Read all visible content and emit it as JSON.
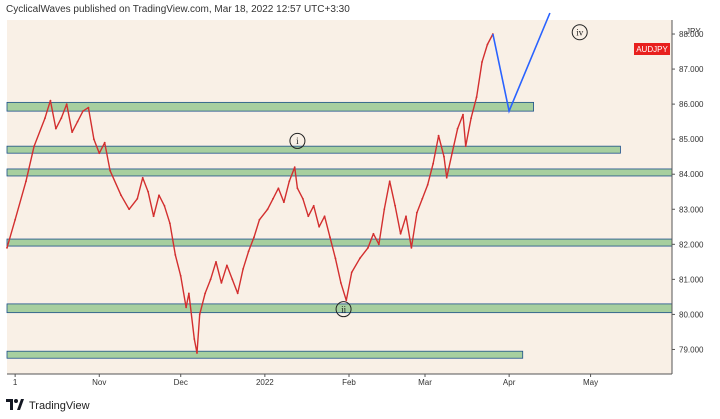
{
  "header": {
    "attribution": "CyclicalWaves published on TradingView.com, Mar 18, 2022 12:57 UTC+3:30"
  },
  "footer": {
    "brand": "TradingView",
    "logo_icon": "tradingview-logo-icon"
  },
  "colors": {
    "background": "#f9f0e6",
    "candle": "#d32f2f",
    "zone_fill": "#a7cf9f",
    "zone_border": "#1b4f8a",
    "projection": "#2962ff",
    "axis_text": "#333333",
    "symbol_badge": "#e8201e"
  },
  "chart_data": {
    "type": "line",
    "symbol": "AUDJPY",
    "unit": "JPY",
    "ylim": [
      78.3,
      88.4
    ],
    "y_ticks": [
      79.0,
      80.0,
      81.0,
      82.0,
      83.0,
      84.0,
      85.0,
      86.0,
      87.0,
      88.0
    ],
    "y_tick_labels": [
      "79.000",
      "80.000",
      "81.000",
      "82.000",
      "83.000",
      "84.000",
      "85.000",
      "86.000",
      "87.000",
      "88.000"
    ],
    "x_range": [
      "2021-09-28",
      "2022-05-31"
    ],
    "x_ticks": [
      {
        "date": "2021-10-01",
        "label": "1"
      },
      {
        "date": "2021-11-01",
        "label": "Nov"
      },
      {
        "date": "2021-12-01",
        "label": "Dec"
      },
      {
        "date": "2022-01-01",
        "label": "2022"
      },
      {
        "date": "2022-02-01",
        "label": "Feb"
      },
      {
        "date": "2022-03-01",
        "label": "Mar"
      },
      {
        "date": "2022-04-01",
        "label": "Apr"
      },
      {
        "date": "2022-05-01",
        "label": "May"
      }
    ],
    "series": [
      {
        "points": [
          [
            "2021-09-28",
            81.9
          ],
          [
            "2021-10-01",
            82.7
          ],
          [
            "2021-10-05",
            83.8
          ],
          [
            "2021-10-08",
            84.8
          ],
          [
            "2021-10-12",
            85.6
          ],
          [
            "2021-10-14",
            86.1
          ],
          [
            "2021-10-16",
            85.3
          ],
          [
            "2021-10-18",
            85.6
          ],
          [
            "2021-10-20",
            86.0
          ],
          [
            "2021-10-22",
            85.2
          ],
          [
            "2021-10-24",
            85.5
          ],
          [
            "2021-10-26",
            85.8
          ],
          [
            "2021-10-28",
            85.9
          ],
          [
            "2021-10-30",
            85.0
          ],
          [
            "2021-11-01",
            84.6
          ],
          [
            "2021-11-03",
            84.9
          ],
          [
            "2021-11-05",
            84.1
          ],
          [
            "2021-11-09",
            83.4
          ],
          [
            "2021-11-12",
            83.0
          ],
          [
            "2021-11-15",
            83.3
          ],
          [
            "2021-11-17",
            83.9
          ],
          [
            "2021-11-19",
            83.5
          ],
          [
            "2021-11-21",
            82.8
          ],
          [
            "2021-11-23",
            83.4
          ],
          [
            "2021-11-25",
            83.1
          ],
          [
            "2021-11-27",
            82.6
          ],
          [
            "2021-11-29",
            81.7
          ],
          [
            "2021-12-01",
            81.1
          ],
          [
            "2021-12-03",
            80.2
          ],
          [
            "2021-12-04",
            80.6
          ],
          [
            "2021-12-06",
            79.3
          ],
          [
            "2021-12-07",
            78.9
          ],
          [
            "2021-12-08",
            80.0
          ],
          [
            "2021-12-10",
            80.6
          ],
          [
            "2021-12-12",
            81.0
          ],
          [
            "2021-12-14",
            81.5
          ],
          [
            "2021-12-16",
            80.9
          ],
          [
            "2021-12-18",
            81.4
          ],
          [
            "2021-12-20",
            81.0
          ],
          [
            "2021-12-22",
            80.6
          ],
          [
            "2021-12-24",
            81.3
          ],
          [
            "2021-12-26",
            81.8
          ],
          [
            "2021-12-28",
            82.2
          ],
          [
            "2021-12-30",
            82.7
          ],
          [
            "2022-01-02",
            83.0
          ],
          [
            "2022-01-04",
            83.3
          ],
          [
            "2022-01-06",
            83.6
          ],
          [
            "2022-01-08",
            83.2
          ],
          [
            "2022-01-10",
            83.8
          ],
          [
            "2022-01-12",
            84.2
          ],
          [
            "2022-01-13",
            83.6
          ],
          [
            "2022-01-15",
            83.3
          ],
          [
            "2022-01-17",
            82.8
          ],
          [
            "2022-01-19",
            83.1
          ],
          [
            "2022-01-21",
            82.5
          ],
          [
            "2022-01-23",
            82.8
          ],
          [
            "2022-01-25",
            82.2
          ],
          [
            "2022-01-27",
            81.6
          ],
          [
            "2022-01-29",
            80.9
          ],
          [
            "2022-01-31",
            80.4
          ],
          [
            "2022-02-02",
            81.2
          ],
          [
            "2022-02-05",
            81.6
          ],
          [
            "2022-02-08",
            81.9
          ],
          [
            "2022-02-10",
            82.3
          ],
          [
            "2022-02-12",
            82.0
          ],
          [
            "2022-02-14",
            83.0
          ],
          [
            "2022-02-16",
            83.8
          ],
          [
            "2022-02-18",
            83.1
          ],
          [
            "2022-02-20",
            82.3
          ],
          [
            "2022-02-22",
            82.8
          ],
          [
            "2022-02-24",
            81.9
          ],
          [
            "2022-02-26",
            82.9
          ],
          [
            "2022-02-28",
            83.3
          ],
          [
            "2022-03-02",
            83.7
          ],
          [
            "2022-03-04",
            84.3
          ],
          [
            "2022-03-06",
            85.1
          ],
          [
            "2022-03-08",
            84.5
          ],
          [
            "2022-03-09",
            83.9
          ],
          [
            "2022-03-11",
            84.6
          ],
          [
            "2022-03-13",
            85.3
          ],
          [
            "2022-03-15",
            85.7
          ],
          [
            "2022-03-16",
            84.8
          ],
          [
            "2022-03-18",
            85.6
          ],
          [
            "2022-03-20",
            86.2
          ],
          [
            "2022-03-22",
            87.2
          ],
          [
            "2022-03-24",
            87.7
          ],
          [
            "2022-03-26",
            88.0
          ]
        ]
      }
    ],
    "zones": [
      {
        "from": "2021-09-28",
        "to": "2022-04-10",
        "low": 85.8,
        "high": 86.05
      },
      {
        "from": "2021-09-28",
        "to": "2022-05-12",
        "low": 84.6,
        "high": 84.8
      },
      {
        "from": "2021-09-28",
        "to": "2022-05-31",
        "low": 83.95,
        "high": 84.15
      },
      {
        "from": "2021-09-28",
        "to": "2022-05-31",
        "low": 81.95,
        "high": 82.15
      },
      {
        "from": "2021-09-28",
        "to": "2022-05-31",
        "low": 80.05,
        "high": 80.3
      },
      {
        "from": "2021-09-28",
        "to": "2022-04-06",
        "low": 78.75,
        "high": 78.95
      }
    ],
    "projection": [
      [
        "2022-03-26",
        88.0
      ],
      [
        "2022-04-01",
        85.8
      ],
      [
        "2022-04-16",
        88.6
      ]
    ],
    "annotations": [
      {
        "label": "i",
        "date": "2022-01-13",
        "value": 84.95
      },
      {
        "label": "ii",
        "date": "2022-01-30",
        "value": 80.15
      },
      {
        "label": "iv",
        "date": "2022-04-27",
        "value": 88.05
      }
    ]
  }
}
